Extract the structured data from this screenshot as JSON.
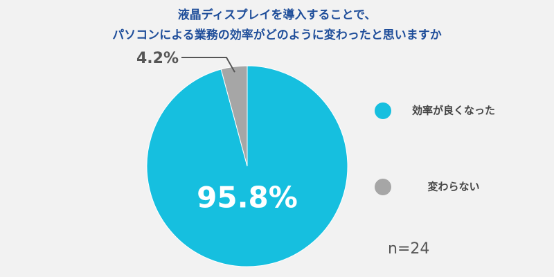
{
  "chart_data": {
    "type": "pie",
    "title": [
      "液晶ディスプレイを導入することで、",
      "パソコンによる業務の効率がどのように変わったと思いますか"
    ],
    "categories": [
      "効率が良くなった",
      "変わらない"
    ],
    "values": [
      95.8,
      4.2
    ],
    "value_labels": [
      "95.8%",
      "4.2%"
    ],
    "colors": [
      "#16bfdf",
      "#a6a6a6"
    ],
    "annotation": "n=24"
  }
}
